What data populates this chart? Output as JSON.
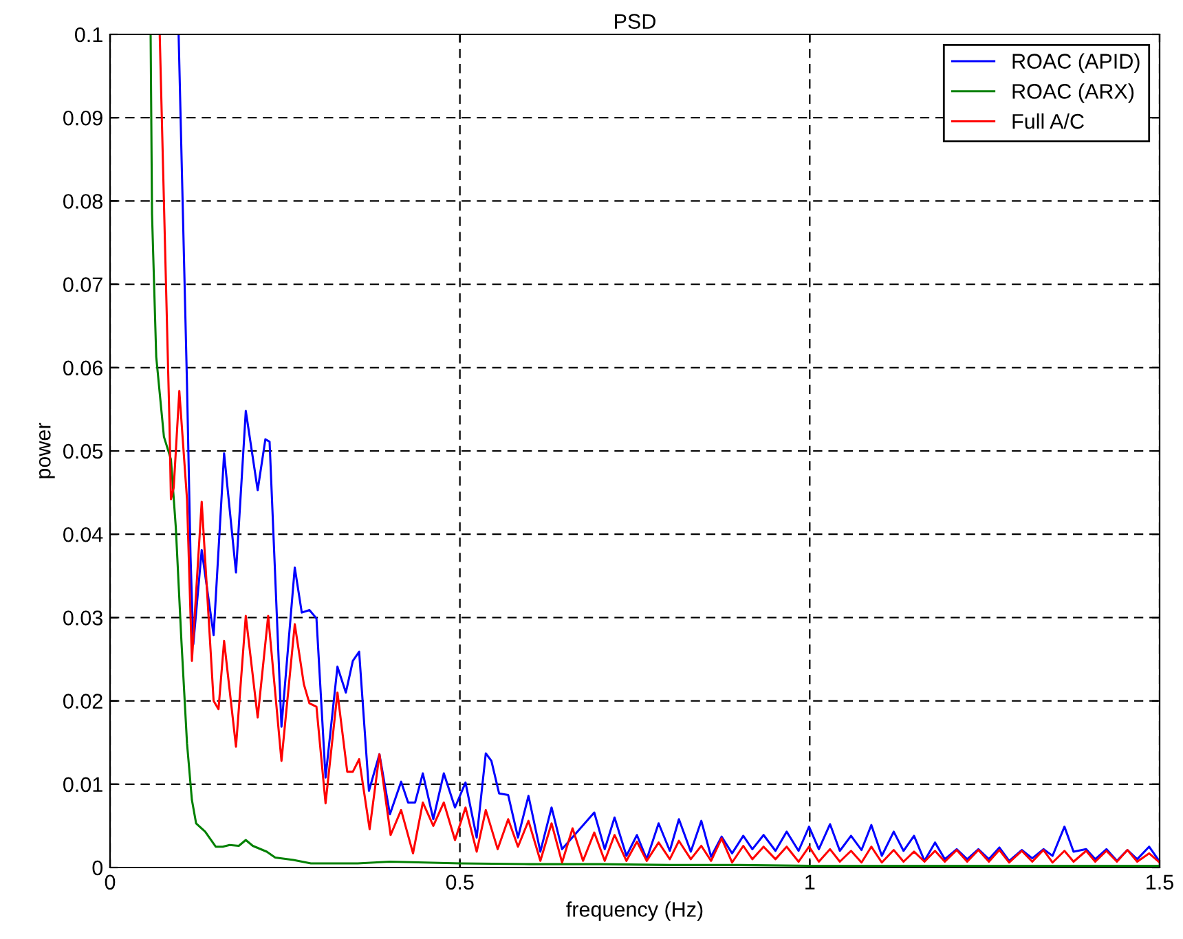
{
  "chart_data": {
    "type": "line",
    "title": "PSD",
    "xlabel": "frequency (Hz)",
    "ylabel": "power",
    "xlim": [
      0,
      1.5
    ],
    "ylim": [
      0,
      0.1
    ],
    "xticks": [
      0,
      0.5,
      1,
      1.5
    ],
    "yticks": [
      0,
      0.01,
      0.02,
      0.03,
      0.04,
      0.05,
      0.06,
      0.07,
      0.08,
      0.09,
      0.1
    ],
    "grid": true,
    "legend": "top right",
    "marker": "none",
    "line_style": "solid",
    "series": [
      {
        "name": "ROAC (APID)",
        "color": "#0000ff",
        "x": [
          0.098,
          0.11,
          0.115,
          0.119,
          0.131,
          0.148,
          0.163,
          0.18,
          0.194,
          0.211,
          0.222,
          0.228,
          0.245,
          0.264,
          0.274,
          0.285,
          0.295,
          0.308,
          0.325,
          0.337,
          0.347,
          0.356,
          0.37,
          0.385,
          0.4,
          0.416,
          0.426,
          0.436,
          0.447,
          0.462,
          0.477,
          0.493,
          0.508,
          0.524,
          0.537,
          0.545,
          0.556,
          0.569,
          0.583,
          0.598,
          0.615,
          0.631,
          0.646,
          0.692,
          0.707,
          0.721,
          0.738,
          0.753,
          0.767,
          0.784,
          0.8,
          0.813,
          0.83,
          0.845,
          0.859,
          0.874,
          0.889,
          0.905,
          0.918,
          0.934,
          0.951,
          0.967,
          0.984,
          0.999,
          1.013,
          1.029,
          1.043,
          1.059,
          1.074,
          1.088,
          1.103,
          1.12,
          1.134,
          1.149,
          1.164,
          1.179,
          1.193,
          1.21,
          1.225,
          1.241,
          1.256,
          1.271,
          1.285,
          1.303,
          1.318,
          1.334,
          1.347,
          1.364,
          1.377,
          1.395,
          1.408,
          1.424,
          1.439,
          1.454,
          1.468,
          1.485,
          1.5
        ],
        "values": [
          0.1,
          0.0579,
          0.0374,
          0.0268,
          0.0381,
          0.0279,
          0.0497,
          0.0354,
          0.0548,
          0.0453,
          0.0514,
          0.0511,
          0.0169,
          0.036,
          0.0306,
          0.0309,
          0.0299,
          0.0108,
          0.0241,
          0.021,
          0.0248,
          0.0259,
          0.0092,
          0.0136,
          0.0064,
          0.0103,
          0.0078,
          0.0078,
          0.0113,
          0.0058,
          0.0113,
          0.0072,
          0.0102,
          0.0036,
          0.0137,
          0.0128,
          0.0089,
          0.0087,
          0.0036,
          0.0086,
          0.0019,
          0.0072,
          0.0022,
          0.0066,
          0.0022,
          0.006,
          0.0014,
          0.0039,
          0.001,
          0.0053,
          0.002,
          0.0058,
          0.0019,
          0.0056,
          0.0013,
          0.0037,
          0.0017,
          0.0038,
          0.0022,
          0.0039,
          0.002,
          0.0043,
          0.002,
          0.0049,
          0.0022,
          0.0052,
          0.002,
          0.0038,
          0.0021,
          0.0051,
          0.0014,
          0.0043,
          0.002,
          0.0038,
          0.0008,
          0.003,
          0.001,
          0.0022,
          0.001,
          0.0022,
          0.001,
          0.0024,
          0.0008,
          0.0021,
          0.0011,
          0.0022,
          0.0014,
          0.0049,
          0.0019,
          0.0022,
          0.001,
          0.0022,
          0.0008,
          0.0021,
          0.001,
          0.0025,
          0.0007
        ]
      },
      {
        "name": "ROAC (ARX)",
        "color": "#008000",
        "x": [
          0.058,
          0.06,
          0.066,
          0.077,
          0.087,
          0.094,
          0.102,
          0.11,
          0.117,
          0.123,
          0.136,
          0.151,
          0.161,
          0.171,
          0.184,
          0.194,
          0.204,
          0.224,
          0.236,
          0.262,
          0.287,
          0.32,
          0.354,
          0.4,
          0.45,
          0.5,
          0.6,
          0.7,
          0.8,
          0.9,
          1.0,
          1.2,
          1.5
        ],
        "values": [
          0.1,
          0.0784,
          0.0613,
          0.0517,
          0.049,
          0.0408,
          0.0272,
          0.0149,
          0.0081,
          0.0053,
          0.0043,
          0.0025,
          0.0025,
          0.0027,
          0.0026,
          0.0033,
          0.0026,
          0.0019,
          0.0012,
          0.0009,
          0.0005,
          0.0005,
          0.0005,
          0.0007,
          0.0006,
          0.0005,
          0.0004,
          0.0004,
          0.0003,
          0.0003,
          0.0002,
          0.0002,
          0.0002
        ]
      },
      {
        "name": "Full A/C",
        "color": "#ff0000",
        "x": [
          0.071,
          0.085,
          0.087,
          0.091,
          0.099,
          0.11,
          0.117,
          0.131,
          0.148,
          0.155,
          0.163,
          0.18,
          0.194,
          0.211,
          0.226,
          0.245,
          0.264,
          0.277,
          0.285,
          0.295,
          0.308,
          0.325,
          0.339,
          0.347,
          0.356,
          0.371,
          0.385,
          0.401,
          0.416,
          0.433,
          0.447,
          0.462,
          0.477,
          0.493,
          0.508,
          0.524,
          0.537,
          0.554,
          0.569,
          0.583,
          0.598,
          0.615,
          0.631,
          0.646,
          0.661,
          0.676,
          0.692,
          0.707,
          0.721,
          0.738,
          0.753,
          0.767,
          0.784,
          0.8,
          0.813,
          0.83,
          0.845,
          0.859,
          0.874,
          0.889,
          0.905,
          0.918,
          0.934,
          0.951,
          0.967,
          0.984,
          0.999,
          1.013,
          1.029,
          1.043,
          1.059,
          1.074,
          1.088,
          1.103,
          1.12,
          1.134,
          1.149,
          1.164,
          1.179,
          1.193,
          1.21,
          1.225,
          1.241,
          1.256,
          1.271,
          1.285,
          1.303,
          1.318,
          1.334,
          1.347,
          1.364,
          1.377,
          1.395,
          1.408,
          1.424,
          1.439,
          1.454,
          1.468,
          1.485,
          1.5
        ],
        "values": [
          0.1,
          0.0531,
          0.0442,
          0.0456,
          0.0572,
          0.0442,
          0.0248,
          0.0439,
          0.02,
          0.019,
          0.0272,
          0.0145,
          0.0302,
          0.018,
          0.0302,
          0.0128,
          0.0292,
          0.022,
          0.0197,
          0.0193,
          0.0077,
          0.021,
          0.0115,
          0.0115,
          0.013,
          0.0046,
          0.0136,
          0.0039,
          0.0069,
          0.0017,
          0.0078,
          0.005,
          0.0078,
          0.0033,
          0.0072,
          0.0019,
          0.0069,
          0.0022,
          0.0058,
          0.0025,
          0.0056,
          0.0008,
          0.0053,
          0.0006,
          0.0047,
          0.0008,
          0.0042,
          0.0008,
          0.0039,
          0.0008,
          0.0031,
          0.0008,
          0.003,
          0.001,
          0.0032,
          0.001,
          0.0026,
          0.0008,
          0.0035,
          0.0006,
          0.0026,
          0.001,
          0.0025,
          0.001,
          0.0025,
          0.0007,
          0.0025,
          0.0007,
          0.0022,
          0.0007,
          0.002,
          0.0006,
          0.0025,
          0.0006,
          0.0021,
          0.0007,
          0.0019,
          0.0007,
          0.002,
          0.0007,
          0.0021,
          0.0007,
          0.0021,
          0.0007,
          0.0021,
          0.0006,
          0.002,
          0.0007,
          0.0021,
          0.0006,
          0.002,
          0.0007,
          0.002,
          0.0007,
          0.002,
          0.0007,
          0.0021,
          0.0007,
          0.0017,
          0.0006
        ]
      }
    ]
  }
}
